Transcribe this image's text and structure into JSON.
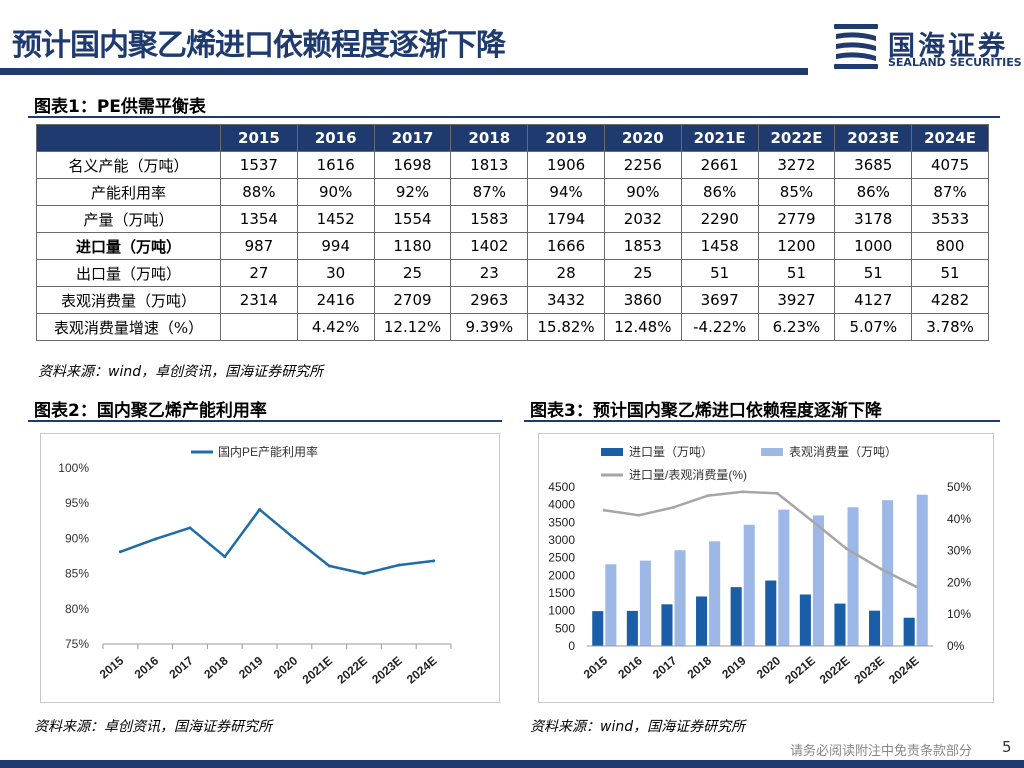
{
  "header": {
    "title": "预计国内聚乙烯进口依赖程度逐渐下降",
    "logo_cn": "国海证券",
    "logo_en": "SEALAND SECURITIES"
  },
  "figure1": {
    "title": "图表1：PE供需平衡表",
    "years": [
      "2015",
      "2016",
      "2017",
      "2018",
      "2019",
      "2020",
      "2021E",
      "2022E",
      "2023E",
      "2024E"
    ],
    "rows": [
      {
        "label": "名义产能（万吨）",
        "bold": false,
        "values": [
          "1537",
          "1616",
          "1698",
          "1813",
          "1906",
          "2256",
          "2661",
          "3272",
          "3685",
          "4075"
        ]
      },
      {
        "label": "产能利用率",
        "bold": false,
        "values": [
          "88%",
          "90%",
          "92%",
          "87%",
          "94%",
          "90%",
          "86%",
          "85%",
          "86%",
          "87%"
        ]
      },
      {
        "label": "产量（万吨）",
        "bold": false,
        "values": [
          "1354",
          "1452",
          "1554",
          "1583",
          "1794",
          "2032",
          "2290",
          "2779",
          "3178",
          "3533"
        ]
      },
      {
        "label": "进口量（万吨）",
        "bold": true,
        "values": [
          "987",
          "994",
          "1180",
          "1402",
          "1666",
          "1853",
          "1458",
          "1200",
          "1000",
          "800"
        ]
      },
      {
        "label": "出口量（万吨）",
        "bold": false,
        "values": [
          "27",
          "30",
          "25",
          "23",
          "28",
          "25",
          "51",
          "51",
          "51",
          "51"
        ]
      },
      {
        "label": "表观消费量（万吨）",
        "bold": false,
        "values": [
          "2314",
          "2416",
          "2709",
          "2963",
          "3432",
          "3860",
          "3697",
          "3927",
          "4127",
          "4282"
        ]
      },
      {
        "label": "表观消费量增速（%）",
        "bold": false,
        "values": [
          "",
          "4.42%",
          "12.12%",
          "9.39%",
          "15.82%",
          "12.48%",
          "-4.22%",
          "6.23%",
          "5.07%",
          "3.78%"
        ]
      }
    ],
    "source": "资料来源：wind，卓创资讯，国海证券研究所"
  },
  "figure2": {
    "title": "图表2：国内聚乙烯产能利用率",
    "source": "资料来源：卓创资讯，国海证券研究所"
  },
  "figure3": {
    "title": "图表3：预计国内聚乙烯进口依赖程度逐渐下降",
    "source": "资料来源：wind，国海证券研究所"
  },
  "chart_data": [
    {
      "type": "line",
      "title": "",
      "categories": [
        "2015",
        "2016",
        "2017",
        "2018",
        "2019",
        "2020",
        "2021E",
        "2022E",
        "2023E",
        "2024E"
      ],
      "series": [
        {
          "name": "国内PE产能利用率",
          "values": [
            88.1,
            89.9,
            91.5,
            87.4,
            94.1,
            90.0,
            86.1,
            85.0,
            86.2,
            86.8
          ],
          "color": "#1f6ca8"
        }
      ],
      "ylim": [
        75,
        100
      ],
      "yticks": [
        75,
        80,
        85,
        90,
        95,
        100
      ],
      "ytick_labels": [
        "75%",
        "80%",
        "85%",
        "90%",
        "95%",
        "100%"
      ],
      "legend": "top-center",
      "grid": false
    },
    {
      "type": "bar",
      "title": "",
      "categories": [
        "2015",
        "2016",
        "2017",
        "2018",
        "2019",
        "2020",
        "2021E",
        "2022E",
        "2023E",
        "2024E"
      ],
      "series": [
        {
          "name": "进口量（万吨）",
          "values": [
            987,
            994,
            1180,
            1402,
            1666,
            1853,
            1458,
            1200,
            1000,
            800
          ],
          "color": "#1a5ea8",
          "axis": "left",
          "kind": "bar"
        },
        {
          "name": "表观消费量（万吨）",
          "values": [
            2314,
            2416,
            2709,
            2963,
            3432,
            3860,
            3697,
            3927,
            4127,
            4282
          ],
          "color": "#9db8e6",
          "axis": "left",
          "kind": "bar"
        },
        {
          "name": "进口量/表观消费量(%)",
          "values": [
            42.7,
            41.1,
            43.6,
            47.3,
            48.5,
            48.0,
            39.4,
            30.6,
            24.2,
            18.7
          ],
          "color": "#a6a6a6",
          "axis": "right",
          "kind": "line"
        }
      ],
      "ylim": [
        0,
        4500
      ],
      "yticks": [
        0,
        500,
        1000,
        1500,
        2000,
        2500,
        3000,
        3500,
        4000,
        4500
      ],
      "y2lim": [
        0,
        50
      ],
      "y2ticks": [
        0,
        10,
        20,
        30,
        40,
        50
      ],
      "y2tick_labels": [
        "0%",
        "10%",
        "20%",
        "30%",
        "40%",
        "50%"
      ],
      "legend": "top",
      "grid": false
    }
  ],
  "footer": {
    "disclaimer": "请务必阅读附注中免责条款部分",
    "page": "5"
  }
}
